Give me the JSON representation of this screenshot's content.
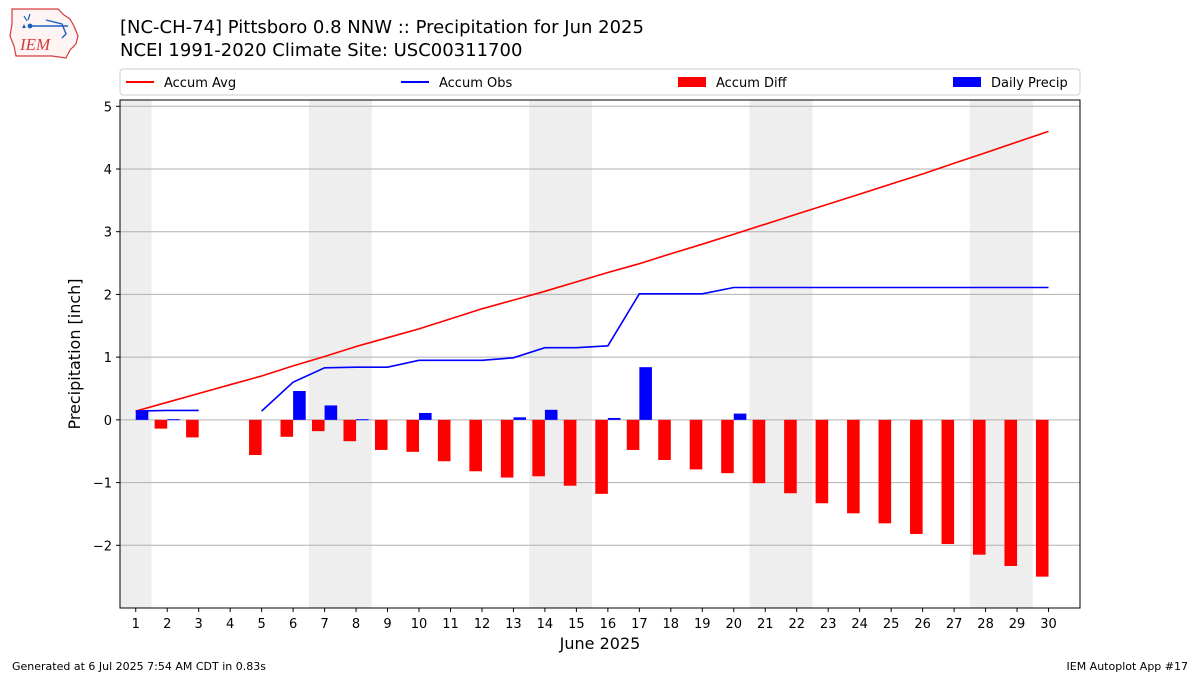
{
  "header": {
    "title_line1": "[NC-CH-74] Pittsboro 0.8 NNW :: Precipitation for Jun 2025",
    "title_line2": "NCEI 1991-2020 Climate Site: USC00311700",
    "logo_text": "IEM"
  },
  "footer": {
    "generated": "Generated at 6 Jul 2025 7:54 AM CDT in 0.83s",
    "app": "IEM Autoplot App #17"
  },
  "colors": {
    "accum_avg": "#ff0000",
    "accum_obs": "#0000ff",
    "accum_diff": "#ff0000",
    "daily_precip": "#0000ff",
    "weekend_shade": "#eeeeee",
    "grid": "#b0b0b0"
  },
  "chart_data": {
    "type": "bar",
    "title": "[NC-CH-74] Pittsboro 0.8 NNW :: Precipitation for Jun 2025",
    "subtitle": "NCEI 1991-2020 Climate Site: USC00311700",
    "xlabel": "June 2025",
    "ylabel": "Precipitation [inch]",
    "ylim": [
      -3.0,
      5.1
    ],
    "yticks": [
      -2,
      -1,
      0,
      1,
      2,
      3,
      4,
      5
    ],
    "ytick_labels": [
      "−2",
      "−1",
      "0",
      "1",
      "2",
      "3",
      "4",
      "5"
    ],
    "x": [
      1,
      2,
      3,
      4,
      5,
      6,
      7,
      8,
      9,
      10,
      11,
      12,
      13,
      14,
      15,
      16,
      17,
      18,
      19,
      20,
      21,
      22,
      23,
      24,
      25,
      26,
      27,
      28,
      29,
      30
    ],
    "grid": "horizontal",
    "legend_position": "top",
    "weekend_shading": [
      [
        1,
        1
      ],
      [
        7,
        8
      ],
      [
        14,
        15
      ],
      [
        21,
        22
      ],
      [
        28,
        29
      ]
    ],
    "legend": [
      "Accum Avg",
      "Accum Obs",
      "Accum Diff",
      "Daily Precip"
    ],
    "series": [
      {
        "name": "Accum Avg",
        "type": "line",
        "values": [
          0.14,
          0.28,
          0.42,
          0.56,
          0.7,
          0.86,
          1.01,
          1.17,
          1.31,
          1.45,
          1.61,
          1.77,
          1.91,
          2.05,
          2.2,
          2.35,
          2.49,
          2.65,
          2.8,
          2.96,
          3.12,
          3.28,
          3.44,
          3.6,
          3.76,
          3.92,
          4.09,
          4.26,
          4.43,
          4.6
        ]
      },
      {
        "name": "Accum Obs",
        "type": "line",
        "values": [
          0.14,
          0.15,
          0.15,
          null,
          0.14,
          0.6,
          0.83,
          0.84,
          0.84,
          0.95,
          0.95,
          0.95,
          0.99,
          1.15,
          1.15,
          1.18,
          2.01,
          2.01,
          2.01,
          2.11,
          2.11,
          2.11,
          2.11,
          2.11,
          2.11,
          2.11,
          2.11,
          2.11,
          2.11,
          2.11
        ]
      },
      {
        "name": "Accum Diff",
        "type": "bar",
        "values": [
          0.0,
          -0.14,
          -0.28,
          null,
          -0.56,
          -0.27,
          -0.18,
          -0.34,
          -0.48,
          -0.51,
          -0.66,
          -0.82,
          -0.92,
          -0.9,
          -1.05,
          -1.18,
          -0.48,
          -0.64,
          -0.79,
          -0.85,
          -1.01,
          -1.17,
          -1.33,
          -1.49,
          -1.65,
          -1.82,
          -1.98,
          -2.15,
          -2.33,
          -2.5
        ]
      },
      {
        "name": "Daily Precip",
        "type": "bar",
        "values": [
          0.14,
          0.01,
          0.0,
          0.0,
          0.0,
          0.46,
          0.23,
          0.01,
          0.0,
          0.11,
          0.0,
          0.0,
          0.04,
          0.16,
          0.0,
          0.03,
          0.84,
          0.0,
          0.0,
          0.1,
          0.0,
          0.0,
          0.0,
          0.0,
          0.0,
          0.0,
          0.0,
          0.0,
          0.0,
          0.0
        ]
      }
    ]
  }
}
